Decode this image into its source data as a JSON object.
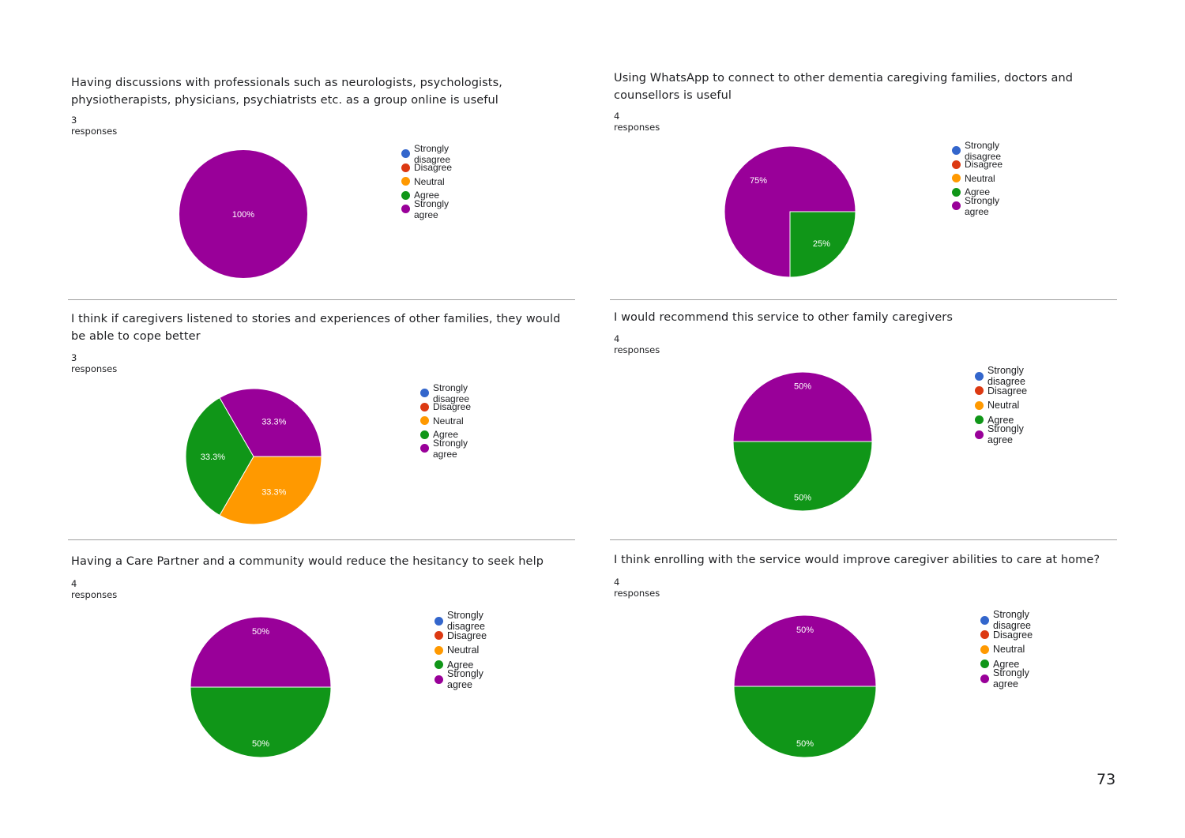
{
  "legend_labels": [
    "Strongly disagree",
    "Disagree",
    "Neutral",
    "Agree",
    "Strongly agree"
  ],
  "colors": {
    "Strongly disagree": "#3366cc",
    "Disagree": "#dc3912",
    "Neutral": "#ff9900",
    "Agree": "#109618",
    "Strongly agree": "#990099"
  },
  "page_number": "73",
  "chart_data": [
    {
      "type": "pie",
      "title": "Having discussions with professionals such as neurologists, psychologists, physiotherapists, physicians, psychiatrists etc. as a group online is useful",
      "subtitle": "3 responses",
      "slices": [
        {
          "label": "Strongly agree",
          "value": 100,
          "text": "100%"
        }
      ]
    },
    {
      "type": "pie",
      "title": "Using WhatsApp to connect to other dementia caregiving families, doctors and counsellors is useful",
      "subtitle": "4 responses",
      "slices": [
        {
          "label": "Agree",
          "value": 25,
          "text": "25%"
        },
        {
          "label": "Strongly agree",
          "value": 75,
          "text": "75%"
        }
      ]
    },
    {
      "type": "pie",
      "title": "I think if caregivers listened to stories and experiences of other families, they would be able to cope better",
      "subtitle": "3 responses",
      "slices": [
        {
          "label": "Neutral",
          "value": 33.3,
          "text": "33.3%"
        },
        {
          "label": "Agree",
          "value": 33.3,
          "text": "33.3%"
        },
        {
          "label": "Strongly agree",
          "value": 33.3,
          "text": "33.3%"
        }
      ]
    },
    {
      "type": "pie",
      "title": "I would recommend this service to other family caregivers",
      "subtitle": "4 responses",
      "slices": [
        {
          "label": "Agree",
          "value": 50,
          "text": "50%"
        },
        {
          "label": "Strongly agree",
          "value": 50,
          "text": "50%"
        }
      ]
    },
    {
      "type": "pie",
      "title": "Having a Care Partner and a community would reduce the hesitancy to seek help",
      "subtitle": "4 responses",
      "slices": [
        {
          "label": "Agree",
          "value": 50,
          "text": "50%"
        },
        {
          "label": "Strongly agree",
          "value": 50,
          "text": "50%"
        }
      ]
    },
    {
      "type": "pie",
      "title": "I think enrolling with the service would improve caregiver abilities to care at home?",
      "subtitle": "4 responses",
      "slices": [
        {
          "label": "Agree",
          "value": 50,
          "text": "50%"
        },
        {
          "label": "Strongly agree",
          "value": 50,
          "text": "50%"
        }
      ]
    }
  ]
}
